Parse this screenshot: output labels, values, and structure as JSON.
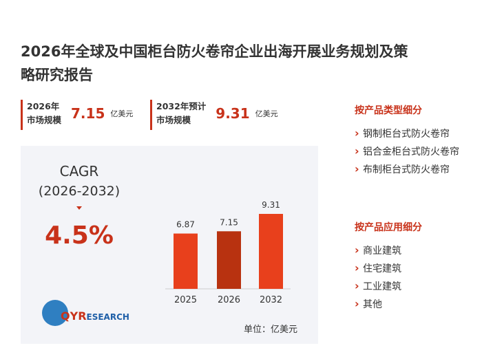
{
  "title_lines": [
    "2026年全球及中国柜台防火卷帘企业出海开展业务规划及策",
    "略研究报告"
  ],
  "stats": [
    {
      "label_lines": [
        "2026年",
        "市场规模"
      ],
      "value": 7.15,
      "unit": "亿美元"
    },
    {
      "label_lines": [
        "2032年预计",
        "市场规模"
      ],
      "value": 9.31,
      "unit": "亿美元"
    }
  ],
  "cagr": {
    "label": "CAGR",
    "period": "(2026-2032)",
    "value": "4.5%"
  },
  "chart_data": {
    "type": "bar",
    "categories": [
      "2025",
      "2026",
      "2032"
    ],
    "values": [
      6.87,
      7.15,
      9.31
    ],
    "colors": [
      "#e8401c",
      "#b83210",
      "#e8401c"
    ],
    "unit": "单位：亿美元"
  },
  "logo": {
    "prefix": "QYR",
    "suffix": "ESEARCH"
  },
  "segments": [
    {
      "title": "按产品类型细分",
      "items": [
        "钢制柜台式防火卷帘",
        "铝合金柜台式防火卷帘",
        "布制柜台式防火卷帘"
      ]
    },
    {
      "title": "按产品应用细分",
      "items": [
        "商业建筑",
        "住宅建筑",
        "工业建筑",
        "其他"
      ]
    }
  ]
}
